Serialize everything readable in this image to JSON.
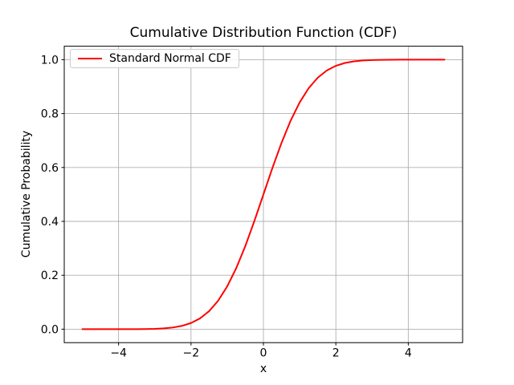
{
  "chart_data": {
    "type": "line",
    "title": "Cumulative Distribution Function (CDF)",
    "xlabel": "x",
    "ylabel": "Cumulative Probability",
    "xlim": [
      -5.5,
      5.5
    ],
    "ylim": [
      -0.05,
      1.05
    ],
    "grid": true,
    "grid_color": "#b0b0b0",
    "spine_color": "#000000",
    "background": "#ffffff",
    "xticks": {
      "values": [
        -4,
        -2,
        0,
        2,
        4
      ],
      "labels": [
        "−4",
        "−2",
        "0",
        "2",
        "4"
      ]
    },
    "yticks": {
      "values": [
        0.0,
        0.2,
        0.4,
        0.6,
        0.8,
        1.0
      ],
      "labels": [
        "0.0",
        "0.2",
        "0.4",
        "0.6",
        "0.8",
        "1.0"
      ]
    },
    "legend": {
      "position": "upper left",
      "entries": [
        {
          "label": "Standard Normal CDF",
          "color": "#ff0000"
        }
      ]
    },
    "series": [
      {
        "name": "Standard Normal CDF",
        "color": "#ff0000",
        "linewidth": 2,
        "x": [
          -5,
          -4.75,
          -4.5,
          -4.25,
          -4,
          -3.75,
          -3.5,
          -3.25,
          -3,
          -2.75,
          -2.5,
          -2.25,
          -2,
          -1.75,
          -1.5,
          -1.25,
          -1,
          -0.75,
          -0.5,
          -0.25,
          0,
          0.25,
          0.5,
          0.75,
          1,
          1.25,
          1.5,
          1.75,
          2,
          2.25,
          2.5,
          2.75,
          3,
          3.25,
          3.5,
          3.75,
          4,
          4.25,
          4.5,
          4.75,
          5
        ],
        "y": [
          3e-07,
          1e-06,
          3.4e-06,
          1.07e-05,
          3.17e-05,
          8.84e-05,
          0.000233,
          0.000577,
          0.00135,
          0.00298,
          0.00621,
          0.01222,
          0.02275,
          0.04006,
          0.06681,
          0.10565,
          0.15866,
          0.22663,
          0.30854,
          0.40129,
          0.5,
          0.59871,
          0.69146,
          0.77337,
          0.84134,
          0.89435,
          0.93319,
          0.95994,
          0.97725,
          0.98778,
          0.99379,
          0.99702,
          0.99865,
          0.99942,
          0.99977,
          0.99991,
          0.99997,
          0.99999,
          0.999997,
          0.999999,
          1.0
        ]
      }
    ]
  }
}
